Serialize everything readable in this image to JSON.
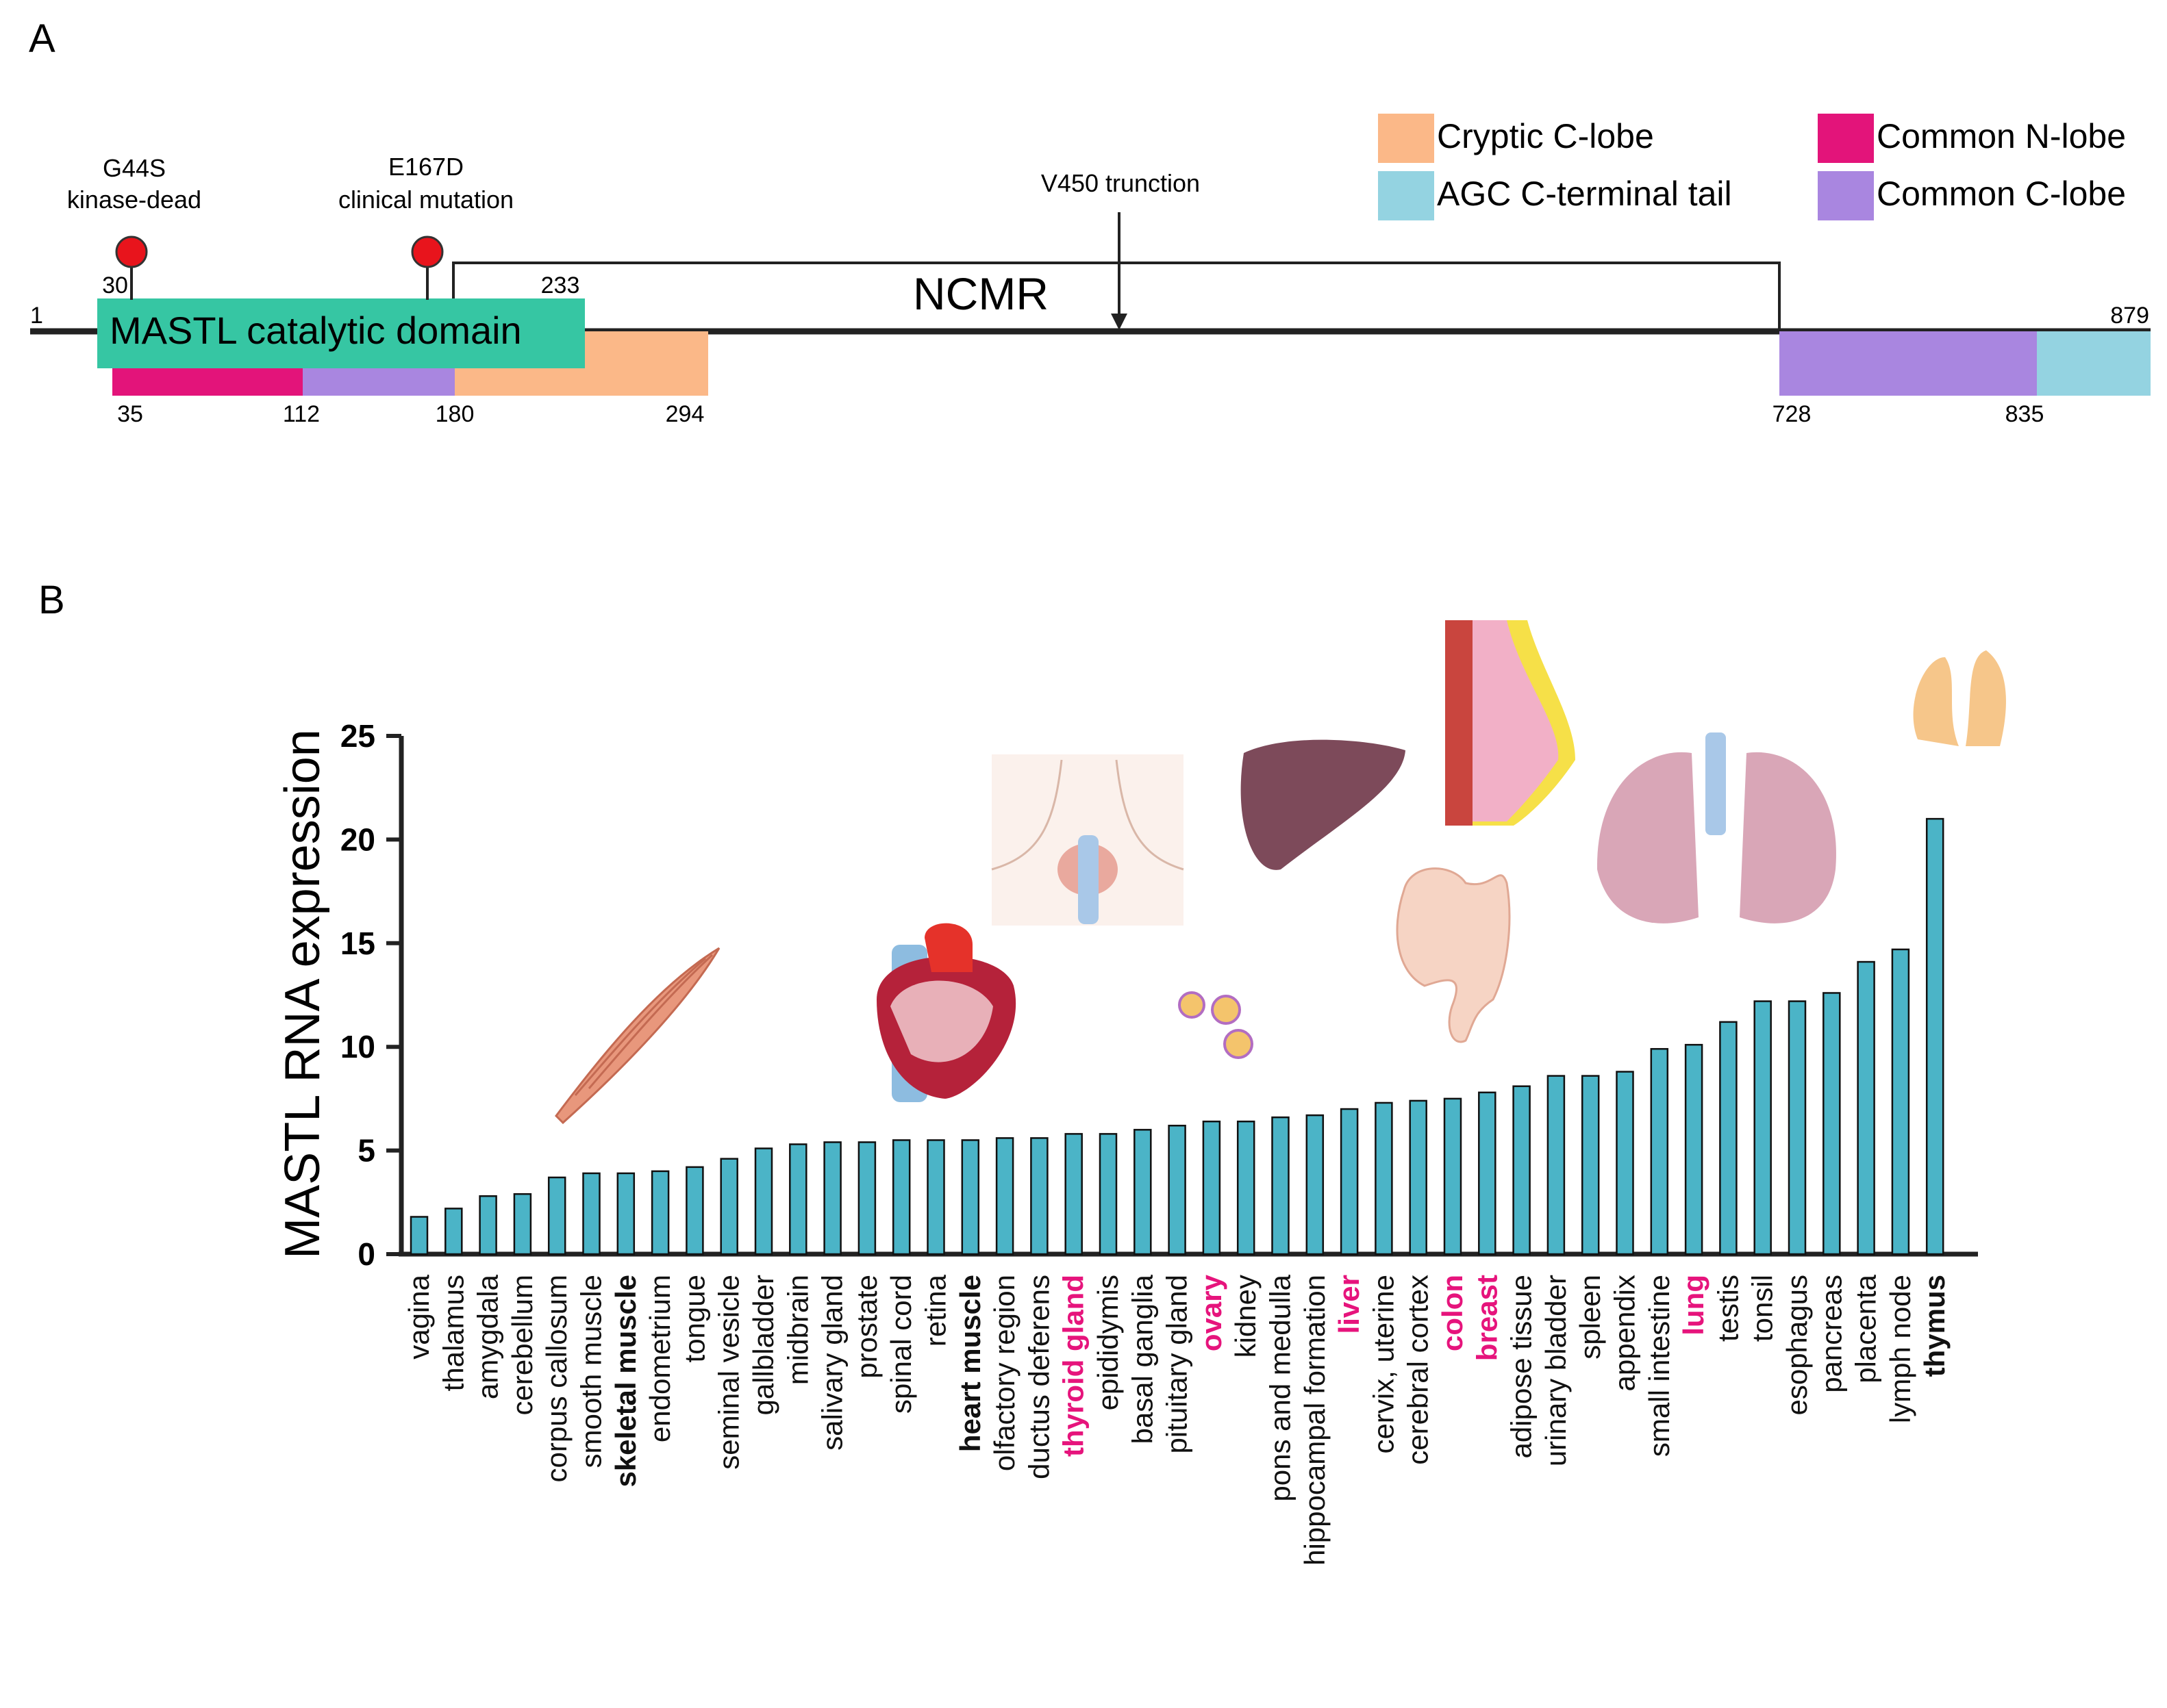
{
  "panel_a": {
    "label": "A",
    "length_start": "1",
    "length_end": "879",
    "catalytic_domain": {
      "label": "MASTL catalytic domain",
      "start": "30",
      "end": "233"
    },
    "ncmr": {
      "label": "NCMR"
    },
    "truncation": {
      "label": "V450 trunction"
    },
    "mutations": [
      {
        "name": "G44S",
        "effect": "kinase-dead"
      },
      {
        "name": "E167D",
        "effect": "clinical mutation"
      }
    ],
    "lobe_ticks": [
      "35",
      "112",
      "180",
      "294",
      "728",
      "835"
    ],
    "legend": [
      {
        "label": "Cryptic C-lobe",
        "color": "#FBB888"
      },
      {
        "label": "AGC C-terminal tail",
        "color": "#94D3E1"
      },
      {
        "label": "Common N-lobe",
        "color": "#E3147A"
      },
      {
        "label": "Common C-lobe",
        "color": "#A986E0"
      }
    ],
    "colors": {
      "domain": "#36C6A3",
      "mutation": "#E8141C"
    }
  },
  "panel_b": {
    "label": "B"
  },
  "chart_data": {
    "type": "bar",
    "title": "",
    "xlabel": "",
    "ylabel": "MASTL RNA expression",
    "ylim": [
      0,
      25
    ],
    "yticks": [
      "0",
      "5",
      "10",
      "15",
      "20",
      "25"
    ],
    "bar_color": "#4BB4C7",
    "categories": [
      "vagina",
      "thalamus",
      "amygdala",
      "cerebellum",
      "corpus callosum",
      "smooth muscle",
      "skeletal muscle",
      "endometrium",
      "tongue",
      "seminal vesicle",
      "gallbladder",
      "midbrain",
      "salivary gland",
      "prostate",
      "spinal cord",
      "retina",
      "heart muscle",
      "olfactory region",
      "ductus deferens",
      "thyroid gland",
      "epididymis",
      "basal ganglia",
      "pituitary gland",
      "ovary",
      "kidney",
      "pons and medulla",
      "hippocampal formation",
      "liver",
      "cervix, uterine",
      "cerebral cortex",
      "colon",
      "breast",
      "adipose tissue",
      "urinary bladder",
      "spleen",
      "appendix",
      "small intestine",
      "lung",
      "testis",
      "tonsil",
      "esophagus",
      "pancreas",
      "placenta",
      "lymph node",
      "thymus"
    ],
    "values": [
      1.8,
      2.2,
      2.8,
      2.9,
      3.7,
      3.9,
      3.9,
      4.0,
      4.2,
      4.6,
      5.1,
      5.3,
      5.4,
      5.4,
      5.5,
      5.5,
      5.5,
      5.6,
      5.6,
      5.8,
      5.8,
      6.0,
      6.2,
      6.4,
      6.4,
      6.6,
      6.7,
      7.0,
      7.3,
      7.4,
      7.5,
      7.8,
      8.1,
      8.6,
      8.6,
      8.8,
      9.9,
      10.1,
      11.2,
      12.2,
      12.2,
      12.6,
      14.1,
      14.7,
      21.0
    ],
    "label_styles": [
      "normal",
      "normal",
      "normal",
      "normal",
      "normal",
      "normal",
      "bold",
      "normal",
      "normal",
      "normal",
      "normal",
      "normal",
      "normal",
      "normal",
      "normal",
      "normal",
      "bold",
      "normal",
      "normal",
      "highlight",
      "normal",
      "normal",
      "normal",
      "highlight",
      "normal",
      "normal",
      "normal",
      "highlight",
      "normal",
      "normal",
      "highlight",
      "highlight",
      "normal",
      "normal",
      "normal",
      "normal",
      "normal",
      "highlight",
      "normal",
      "normal",
      "normal",
      "normal",
      "normal",
      "normal",
      "bold"
    ],
    "highlight_color": "#E6147C"
  }
}
